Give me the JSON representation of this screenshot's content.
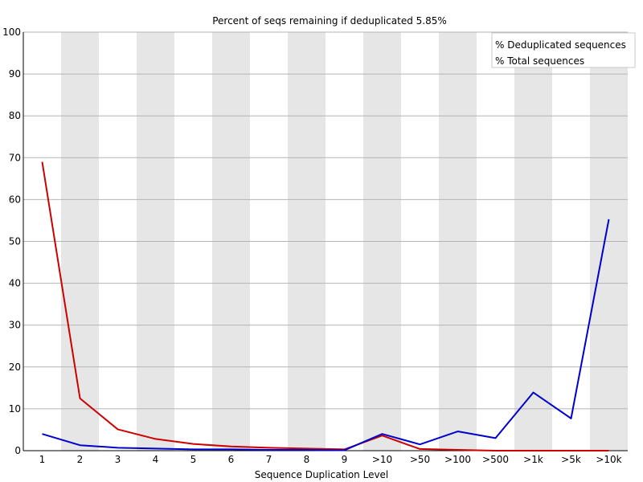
{
  "chart_data": {
    "type": "line",
    "title": "Percent of seqs remaining if deduplicated 5.85%",
    "xlabel": "Sequence Duplication Level",
    "ylabel": "",
    "ylim": [
      0,
      100
    ],
    "yticks": [
      0,
      10,
      20,
      30,
      40,
      50,
      60,
      70,
      80,
      90,
      100
    ],
    "grid": true,
    "legend_position": "top-right",
    "categories": [
      "1",
      "2",
      "3",
      "4",
      "5",
      "6",
      "7",
      "8",
      "9",
      ">10",
      ">50",
      ">100",
      ">500",
      ">1k",
      ">5k",
      ">10k"
    ],
    "series": [
      {
        "name": "% Deduplicated sequences",
        "color": "#cc0000",
        "values": [
          69.0,
          12.5,
          5.1,
          2.8,
          1.6,
          1.0,
          0.7,
          0.5,
          0.3,
          3.6,
          0.4,
          0.2,
          0.0,
          0.0,
          0.0,
          0.0
        ]
      },
      {
        "name": "% Total sequences",
        "color": "#0000cc",
        "values": [
          4.0,
          1.3,
          0.7,
          0.5,
          0.3,
          0.3,
          0.2,
          0.2,
          0.1,
          4.0,
          1.5,
          4.6,
          3.0,
          13.9,
          7.7,
          55.3
        ]
      }
    ]
  }
}
